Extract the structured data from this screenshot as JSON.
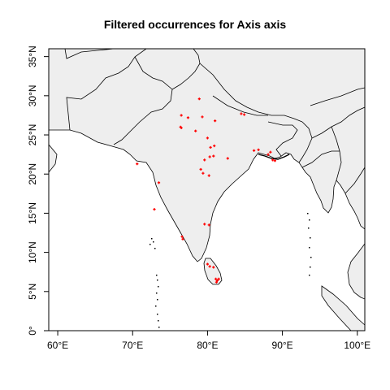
{
  "title": "Filtered occurrences for Axis axis",
  "colors": {
    "land": "#eeeeee",
    "border": "#000000",
    "sea": "#ffffff",
    "points": "#ff0000"
  },
  "chart_data": {
    "type": "scatter",
    "title": "Filtered occurrences for Axis axis",
    "xlabel": "",
    "ylabel": "",
    "xlim": [
      58.8,
      101
    ],
    "ylim": [
      0,
      36
    ],
    "x_ticks": [
      {
        "value": 60,
        "label": "60°E"
      },
      {
        "value": 70,
        "label": "70°E"
      },
      {
        "value": 80,
        "label": "80°E"
      },
      {
        "value": 90,
        "label": "90°E"
      },
      {
        "value": 100,
        "label": "100°E"
      }
    ],
    "y_ticks": [
      {
        "value": 0,
        "label": "0°"
      },
      {
        "value": 5,
        "label": "5°N"
      },
      {
        "value": 10,
        "label": "10°N"
      },
      {
        "value": 15,
        "label": "15°N"
      },
      {
        "value": 20,
        "label": "20°N"
      },
      {
        "value": 25,
        "label": "25°N"
      },
      {
        "value": 30,
        "label": "30°N"
      },
      {
        "value": 35,
        "label": "35°N"
      }
    ],
    "grid": false,
    "points": [
      {
        "lon": 78.9,
        "lat": 29.6
      },
      {
        "lon": 76.5,
        "lat": 27.5
      },
      {
        "lon": 77.4,
        "lat": 27.2
      },
      {
        "lon": 79.3,
        "lat": 27.3
      },
      {
        "lon": 81.0,
        "lat": 26.8
      },
      {
        "lon": 76.4,
        "lat": 26.0
      },
      {
        "lon": 76.5,
        "lat": 25.9
      },
      {
        "lon": 78.4,
        "lat": 25.5
      },
      {
        "lon": 80.0,
        "lat": 24.6
      },
      {
        "lon": 80.4,
        "lat": 23.4
      },
      {
        "lon": 80.9,
        "lat": 23.6
      },
      {
        "lon": 79.6,
        "lat": 21.8
      },
      {
        "lon": 80.3,
        "lat": 22.2
      },
      {
        "lon": 80.8,
        "lat": 22.3
      },
      {
        "lon": 82.7,
        "lat": 22.0
      },
      {
        "lon": 79.1,
        "lat": 20.6
      },
      {
        "lon": 79.4,
        "lat": 20.1
      },
      {
        "lon": 80.2,
        "lat": 19.8
      },
      {
        "lon": 84.5,
        "lat": 27.7
      },
      {
        "lon": 84.9,
        "lat": 27.6
      },
      {
        "lon": 86.2,
        "lat": 23.0
      },
      {
        "lon": 86.8,
        "lat": 23.1
      },
      {
        "lon": 88.1,
        "lat": 22.5
      },
      {
        "lon": 88.4,
        "lat": 22.8
      },
      {
        "lon": 88.7,
        "lat": 21.8
      },
      {
        "lon": 89.0,
        "lat": 21.7
      },
      {
        "lon": 70.6,
        "lat": 21.3
      },
      {
        "lon": 73.5,
        "lat": 18.9
      },
      {
        "lon": 72.9,
        "lat": 15.5
      },
      {
        "lon": 76.6,
        "lat": 12.0
      },
      {
        "lon": 76.7,
        "lat": 11.7
      },
      {
        "lon": 79.6,
        "lat": 13.6
      },
      {
        "lon": 80.2,
        "lat": 13.5
      },
      {
        "lon": 80.0,
        "lat": 8.5
      },
      {
        "lon": 80.3,
        "lat": 8.2
      },
      {
        "lon": 80.8,
        "lat": 8.1
      },
      {
        "lon": 81.1,
        "lat": 6.6
      },
      {
        "lon": 81.3,
        "lat": 6.4
      },
      {
        "lon": 81.5,
        "lat": 6.6
      },
      {
        "lon": 81.2,
        "lat": 6.2
      }
    ]
  }
}
